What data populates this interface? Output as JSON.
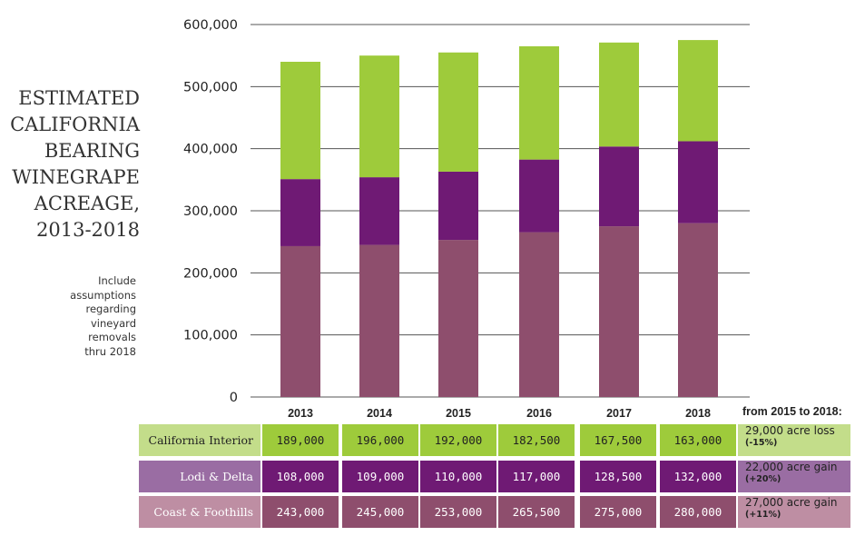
{
  "title_lines": [
    "ESTIMATED",
    "CALIFORNIA",
    "BEARING",
    "WINEGRAPE",
    "ACREAGE,",
    "2013-2018"
  ],
  "note_lines": [
    "Include",
    "assumptions",
    "regarding",
    "vineyard",
    "removals",
    "thru 2018"
  ],
  "change_header": "from 2015 to 2018:",
  "colors": {
    "california_interior": "#9ecb3b",
    "lodi_delta": "#6f1a74",
    "coast_foothills": "#8e4e6d",
    "row_interior_label": "#c3dd8a",
    "row_lodi_label": "#9a6da3",
    "row_coast_label": "#be8ea3",
    "row_interior_values": "#9ecb3b",
    "row_lodi_values": "#6f1a74",
    "row_coast_values": "#8e4e6d",
    "gridline": "#555555"
  },
  "chart_data": {
    "type": "bar",
    "stacked": true,
    "title": "ESTIMATED CALIFORNIA BEARING WINEGRAPE ACREAGE, 2013-2018",
    "categories": [
      "2013",
      "2014",
      "2015",
      "2016",
      "2017",
      "2018"
    ],
    "y_ticks": [
      "0",
      "100,000",
      "200,000",
      "300,000",
      "400,000",
      "500,000",
      "600,000"
    ],
    "ylim": [
      0,
      600000
    ],
    "grid": true,
    "series": [
      {
        "name": "Coast & Foothills",
        "values": [
          243000,
          245000,
          253000,
          265500,
          275000,
          280000
        ]
      },
      {
        "name": "Lodi & Delta",
        "values": [
          108000,
          109000,
          110000,
          117000,
          128500,
          132000
        ]
      },
      {
        "name": "California Interior",
        "values": [
          189000,
          196000,
          192000,
          182500,
          167500,
          163000
        ]
      }
    ]
  },
  "table": {
    "rows": [
      {
        "label": "California Interior",
        "values": [
          "189,000",
          "196,000",
          "192,000",
          "182,500",
          "167,500",
          "163,000"
        ],
        "change": "29,000 acre loss",
        "pct": "(-15%)"
      },
      {
        "label": "Lodi & Delta",
        "values": [
          "108,000",
          "109,000",
          "110,000",
          "117,000",
          "128,500",
          "132,000"
        ],
        "change": "22,000 acre gain",
        "pct": "(+20%)"
      },
      {
        "label": "Coast & Foothills",
        "values": [
          "243,000",
          "245,000",
          "253,000",
          "265,500",
          "275,000",
          "280,000"
        ],
        "change": "27,000 acre gain",
        "pct": "(+11%)"
      }
    ]
  }
}
